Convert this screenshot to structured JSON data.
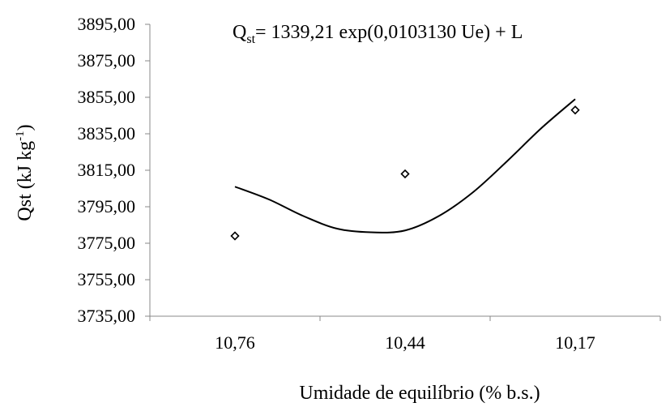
{
  "chart_data": {
    "type": "scatter",
    "equation": {
      "lhs_base": "Q",
      "lhs_sub": "st",
      "rhs": "= 1339,21 exp(0,0103130 Ue) + L"
    },
    "xlabel": "Umidade de equilíbrio (% b.s.)",
    "ylabel": {
      "main": "Qst (kJ kg",
      "sup": "-1",
      "close": ")"
    },
    "categories": [
      "10,76",
      "10,44",
      "10,17"
    ],
    "y_ticks": [
      "3735,00",
      "3755,00",
      "3775,00",
      "3795,00",
      "3815,00",
      "3835,00",
      "3855,00",
      "3875,00",
      "3895,00"
    ],
    "ylim": [
      3735,
      3895
    ],
    "series": [
      {
        "kind": "points",
        "marker": "diamond-open",
        "values": [
          3779,
          3813,
          3848
        ]
      },
      {
        "kind": "fitted-curve",
        "line": "solid",
        "x": [
          0,
          0.2,
          0.4,
          0.6,
          0.8,
          1.0,
          1.2,
          1.4,
          1.6,
          1.8,
          2.0
        ],
        "values": [
          3806,
          3799,
          3790,
          3783,
          3781,
          3782,
          3790,
          3803,
          3820,
          3838,
          3854
        ]
      }
    ],
    "grid": false,
    "legend": "none"
  }
}
